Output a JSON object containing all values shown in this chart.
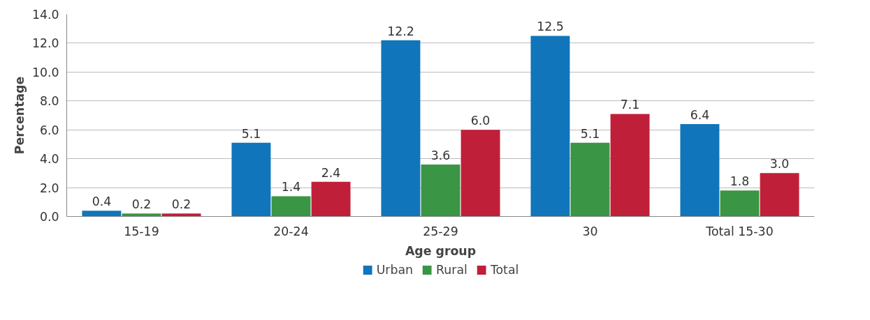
{
  "chart_data": {
    "type": "bar",
    "xlabel": "Age group",
    "ylabel": "Percentage",
    "categories": [
      "15-19",
      "20-24",
      "25-29",
      "30",
      "Total 15-30"
    ],
    "series": [
      {
        "name": "Urban",
        "color": "#1075bb",
        "values": [
          0.4,
          5.1,
          12.2,
          12.5,
          6.4
        ],
        "value_labels": [
          "0.4",
          "5.1",
          "12.2",
          "12.5",
          "6.4"
        ]
      },
      {
        "name": "Rural",
        "color": "#3a9545",
        "values": [
          0.2,
          1.4,
          3.6,
          5.1,
          1.8
        ],
        "value_labels": [
          "0.2",
          "1.4",
          "3.6",
          "5.1",
          "1.8"
        ]
      },
      {
        "name": "Total",
        "color": "#c01f3a",
        "values": [
          0.2,
          2.4,
          6.0,
          7.1,
          3.0
        ],
        "value_labels": [
          "0.2",
          "2.4",
          "6.0",
          "7.1",
          "3.0"
        ]
      }
    ],
    "ylim": [
      0,
      14
    ],
    "yticks": [
      {
        "value": 0,
        "label": "0.0"
      },
      {
        "value": 2,
        "label": "2.0"
      },
      {
        "value": 4,
        "label": "4.0"
      },
      {
        "value": 6,
        "label": "6.0"
      },
      {
        "value": 8,
        "label": "8.0"
      },
      {
        "value": 10,
        "label": "10.0"
      },
      {
        "value": 12,
        "label": "12.0"
      },
      {
        "value": 14,
        "label": "14.0"
      }
    ],
    "grid": "y",
    "legend": "bottom"
  }
}
